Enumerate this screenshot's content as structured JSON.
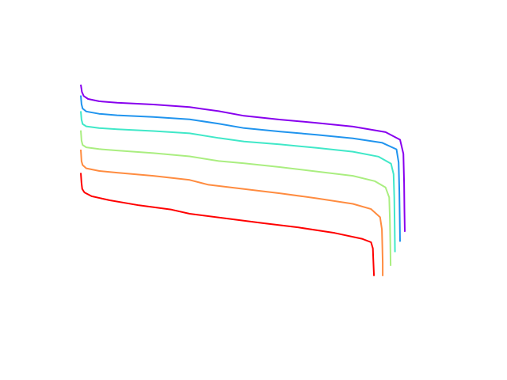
{
  "chart_data": {
    "type": "line",
    "title": "",
    "xlabel": "",
    "ylabel": "",
    "axes_visible": false,
    "grid": false,
    "legend": "none",
    "xlim": [
      0,
      1
    ],
    "ylim": [
      0,
      1
    ],
    "series": [
      {
        "color": "#ff0000",
        "points": [
          [
            0.0,
            0.564
          ],
          [
            0.002,
            0.529
          ],
          [
            0.004,
            0.509
          ],
          [
            0.01,
            0.497
          ],
          [
            0.03,
            0.484
          ],
          [
            0.08,
            0.47
          ],
          [
            0.16,
            0.453
          ],
          [
            0.25,
            0.438
          ],
          [
            0.3,
            0.424
          ],
          [
            0.4,
            0.408
          ],
          [
            0.5,
            0.392
          ],
          [
            0.6,
            0.377
          ],
          [
            0.7,
            0.358
          ],
          [
            0.775,
            0.338
          ],
          [
            0.8,
            0.326
          ],
          [
            0.805,
            0.305
          ],
          [
            0.806,
            0.275
          ],
          [
            0.807,
            0.242
          ],
          [
            0.808,
            0.21
          ]
        ]
      },
      {
        "color": "#ff8c40",
        "points": [
          [
            0.0,
            0.644
          ],
          [
            0.002,
            0.604
          ],
          [
            0.005,
            0.591
          ],
          [
            0.015,
            0.58
          ],
          [
            0.05,
            0.571
          ],
          [
            0.1,
            0.565
          ],
          [
            0.2,
            0.554
          ],
          [
            0.3,
            0.54
          ],
          [
            0.35,
            0.524
          ],
          [
            0.45,
            0.509
          ],
          [
            0.55,
            0.494
          ],
          [
            0.65,
            0.477
          ],
          [
            0.75,
            0.458
          ],
          [
            0.8,
            0.44
          ],
          [
            0.825,
            0.412
          ],
          [
            0.83,
            0.37
          ],
          [
            0.831,
            0.315
          ],
          [
            0.832,
            0.255
          ],
          [
            0.832,
            0.21
          ]
        ]
      },
      {
        "color": "#aaee80",
        "points": [
          [
            0.0,
            0.71
          ],
          [
            0.002,
            0.675
          ],
          [
            0.005,
            0.66
          ],
          [
            0.015,
            0.652
          ],
          [
            0.05,
            0.646
          ],
          [
            0.1,
            0.641
          ],
          [
            0.2,
            0.632
          ],
          [
            0.3,
            0.621
          ],
          [
            0.38,
            0.605
          ],
          [
            0.45,
            0.597
          ],
          [
            0.55,
            0.584
          ],
          [
            0.65,
            0.569
          ],
          [
            0.75,
            0.554
          ],
          [
            0.81,
            0.536
          ],
          [
            0.84,
            0.514
          ],
          [
            0.85,
            0.48
          ],
          [
            0.852,
            0.4
          ],
          [
            0.853,
            0.32
          ],
          [
            0.854,
            0.245
          ]
        ]
      },
      {
        "color": "#40e8c8",
        "points": [
          [
            0.0,
            0.776
          ],
          [
            0.002,
            0.747
          ],
          [
            0.005,
            0.732
          ],
          [
            0.015,
            0.724
          ],
          [
            0.05,
            0.718
          ],
          [
            0.1,
            0.714
          ],
          [
            0.2,
            0.708
          ],
          [
            0.3,
            0.7
          ],
          [
            0.38,
            0.684
          ],
          [
            0.45,
            0.672
          ],
          [
            0.55,
            0.662
          ],
          [
            0.65,
            0.65
          ],
          [
            0.75,
            0.637
          ],
          [
            0.82,
            0.62
          ],
          [
            0.855,
            0.596
          ],
          [
            0.862,
            0.56
          ],
          [
            0.864,
            0.48
          ],
          [
            0.865,
            0.38
          ],
          [
            0.866,
            0.292
          ]
        ]
      },
      {
        "color": "#2094ee",
        "points": [
          [
            0.0,
            0.83
          ],
          [
            0.002,
            0.8
          ],
          [
            0.005,
            0.785
          ],
          [
            0.015,
            0.775
          ],
          [
            0.05,
            0.767
          ],
          [
            0.1,
            0.762
          ],
          [
            0.2,
            0.756
          ],
          [
            0.3,
            0.748
          ],
          [
            0.38,
            0.733
          ],
          [
            0.45,
            0.718
          ],
          [
            0.55,
            0.706
          ],
          [
            0.65,
            0.695
          ],
          [
            0.75,
            0.683
          ],
          [
            0.83,
            0.668
          ],
          [
            0.87,
            0.645
          ],
          [
            0.876,
            0.6
          ],
          [
            0.878,
            0.5
          ],
          [
            0.879,
            0.41
          ],
          [
            0.88,
            0.328
          ]
        ]
      },
      {
        "color": "#8800ee",
        "points": [
          [
            0.0,
            0.867
          ],
          [
            0.003,
            0.842
          ],
          [
            0.008,
            0.828
          ],
          [
            0.02,
            0.818
          ],
          [
            0.05,
            0.81
          ],
          [
            0.1,
            0.805
          ],
          [
            0.2,
            0.799
          ],
          [
            0.3,
            0.79
          ],
          [
            0.38,
            0.776
          ],
          [
            0.45,
            0.76
          ],
          [
            0.55,
            0.747
          ],
          [
            0.65,
            0.736
          ],
          [
            0.75,
            0.723
          ],
          [
            0.84,
            0.704
          ],
          [
            0.88,
            0.678
          ],
          [
            0.889,
            0.63
          ],
          [
            0.891,
            0.53
          ],
          [
            0.892,
            0.44
          ],
          [
            0.893,
            0.362
          ]
        ]
      }
    ]
  }
}
